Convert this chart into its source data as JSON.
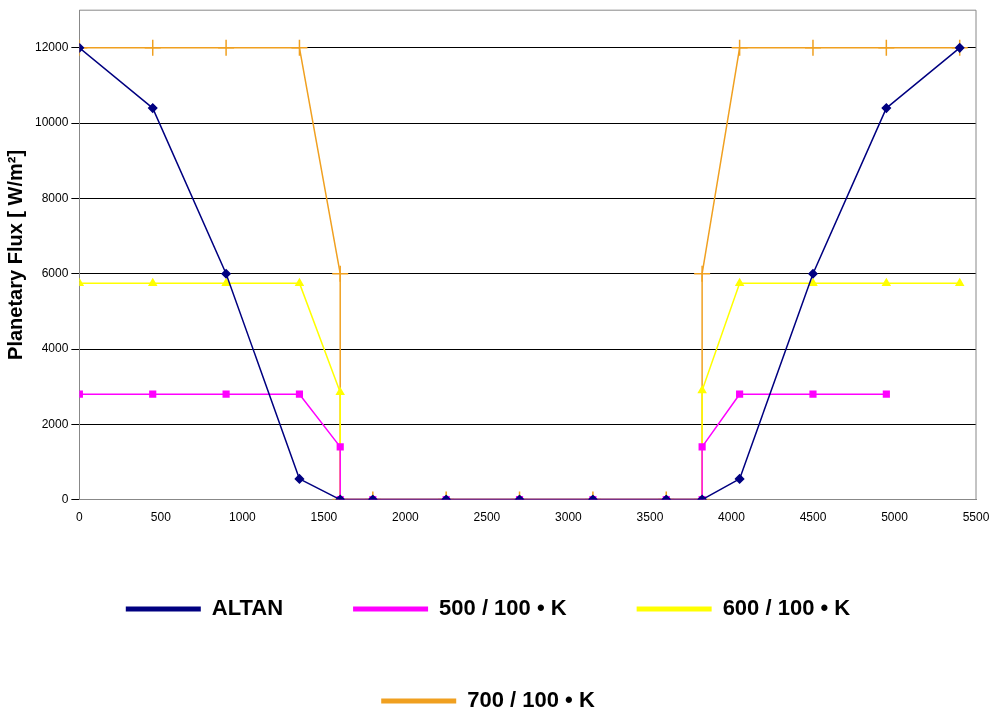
{
  "chart_data": {
    "type": "line",
    "ylabel": "Planetary Flux [ W/m²]",
    "xlim": [
      0,
      5500
    ],
    "xticks": [
      0,
      500,
      1000,
      1500,
      2000,
      2500,
      3000,
      3500,
      4000,
      4500,
      5000,
      5500
    ],
    "ylim": [
      0,
      13000
    ],
    "yticks": [
      0,
      2000,
      4000,
      6000,
      8000,
      10000,
      12000
    ],
    "grid": "y",
    "legend": "bottom",
    "series": [
      {
        "name": "ALTAN",
        "color": "#000080",
        "marker": "diamond",
        "x": [
          0,
          450,
          900,
          1350,
          1600,
          1800,
          2250,
          2700,
          3150,
          3600,
          3820,
          4050,
          4500,
          4950,
          5400
        ],
        "values": [
          12000,
          10400,
          6000,
          550,
          0,
          0,
          0,
          0,
          0,
          0,
          0,
          550,
          6000,
          10400,
          12000
        ]
      },
      {
        "name": "500 / 100 • K",
        "color": "#ff00ff",
        "marker": "square",
        "x": [
          0,
          450,
          900,
          1350,
          1600,
          1600,
          1800,
          2250,
          2700,
          3150,
          3600,
          3820,
          3820,
          4050,
          4500,
          4950
        ],
        "values": [
          2800,
          2800,
          2800,
          2800,
          1400,
          0,
          0,
          0,
          0,
          0,
          0,
          0,
          1400,
          2800,
          2800,
          2800
        ]
      },
      {
        "name": "600 / 100 • K",
        "color": "#ffff00",
        "marker": "triangle",
        "x": [
          0,
          450,
          900,
          1350,
          1600,
          1600,
          1800,
          2250,
          2700,
          3150,
          3600,
          3820,
          3820,
          4050,
          4500,
          4950,
          5400
        ],
        "values": [
          5750,
          5750,
          5750,
          5750,
          2850,
          0,
          0,
          0,
          0,
          0,
          0,
          0,
          2900,
          5750,
          5750,
          5750,
          5750
        ]
      },
      {
        "name": "700 / 100 • K",
        "color": "#f0a020",
        "marker": "cross",
        "x": [
          0,
          450,
          900,
          1350,
          1600,
          1600,
          1800,
          2250,
          2700,
          3150,
          3600,
          3820,
          3820,
          4050,
          4500,
          4950,
          5400
        ],
        "values": [
          12000,
          12000,
          12000,
          12000,
          6000,
          0,
          0,
          0,
          0,
          0,
          0,
          0,
          6000,
          12000,
          12000,
          12000,
          12000
        ]
      }
    ]
  }
}
